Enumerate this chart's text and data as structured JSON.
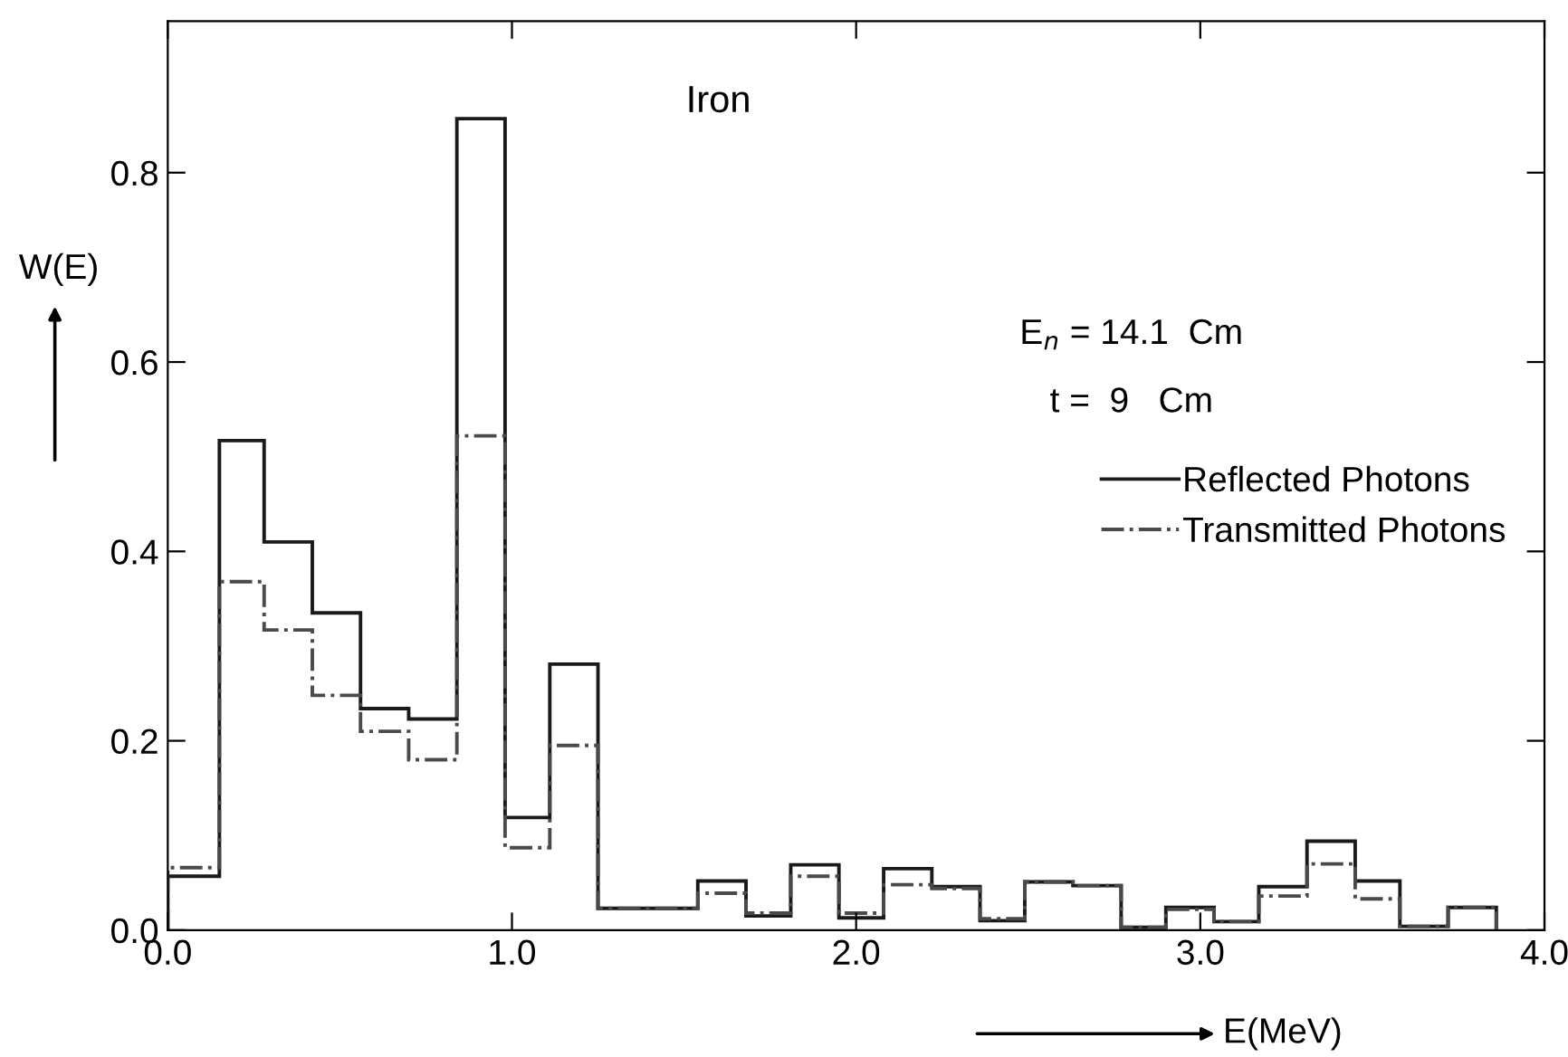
{
  "chart_data": {
    "type": "histogram",
    "title": "Iron",
    "xlabel": "E(MeV)",
    "ylabel": "W(E)",
    "annotations": [
      "E$_{n}$ = 14.1  Cm",
      "t =  9   Cm"
    ],
    "bins": [
      0,
      0.15,
      0.28,
      0.42,
      0.56,
      0.7,
      0.84,
      0.98,
      1.11,
      1.25,
      1.54,
      1.68,
      1.81,
      1.95,
      2.08,
      2.22,
      2.36,
      2.49,
      2.63,
      2.77,
      2.9,
      3.04,
      3.17,
      3.31,
      3.45,
      3.58,
      3.72,
      3.86
    ],
    "series": [
      {
        "name": "Reflected Photons",
        "color": "#1a1a1a",
        "line_style": "solid",
        "values": [
          0.057,
          0.517,
          0.41,
          0.335,
          0.234,
          0.223,
          0.857,
          0.119,
          0.281,
          0.023,
          0.052,
          0.015,
          0.069,
          0.013,
          0.065,
          0.046,
          0.01,
          0.051,
          0.047,
          0.003,
          0.024,
          0.009,
          0.046,
          0.094,
          0.052,
          0.004,
          0.024
        ]
      },
      {
        "name": "Transmitted Photons",
        "color": "#4a4a4a",
        "line_style": "dashdot",
        "values": [
          0.066,
          0.368,
          0.317,
          0.248,
          0.21,
          0.18,
          0.522,
          0.087,
          0.195,
          0.023,
          0.039,
          0.018,
          0.057,
          0.018,
          0.048,
          0.044,
          0.012,
          0.051,
          0.047,
          0.003,
          0.022,
          0.009,
          0.036,
          0.07,
          0.033,
          0.004,
          0.024
        ]
      }
    ],
    "xlim": [
      0,
      4.0
    ],
    "ylim": [
      0,
      0.96
    ],
    "xticks": [
      {
        "value": 0,
        "label": "0.0"
      },
      {
        "value": 1,
        "label": "1.0"
      },
      {
        "value": 2,
        "label": "2.0"
      },
      {
        "value": 3,
        "label": "3.0"
      },
      {
        "value": 4,
        "label": "4.0"
      }
    ],
    "yticks": [
      {
        "value": 0,
        "label": "0.0"
      },
      {
        "value": 0.2,
        "label": "0.2"
      },
      {
        "value": 0.4,
        "label": "0.4"
      },
      {
        "value": 0.6,
        "label": "0.6"
      },
      {
        "value": 0.8,
        "label": "0.8"
      }
    ],
    "grid": false,
    "legend": "right"
  }
}
